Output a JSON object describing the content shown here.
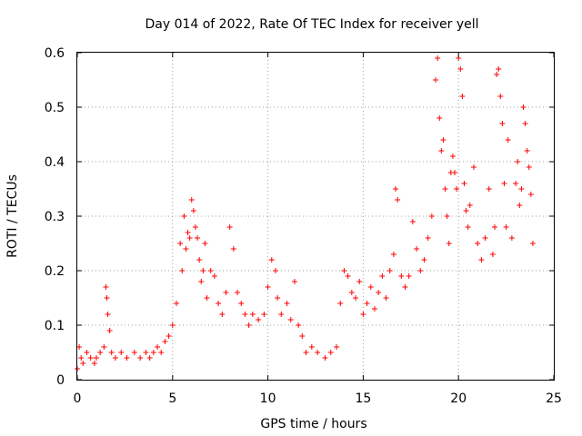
{
  "chart_data": {
    "type": "scatter",
    "title": "Day 014 of 2022, Rate Of TEC Index for receiver yell",
    "xlabel": "GPS time / hours",
    "ylabel": "ROTI / TECUs",
    "xlim": [
      0,
      25
    ],
    "ylim": [
      0,
      0.6
    ],
    "xticks": [
      "0",
      "5",
      "10",
      "15",
      "20",
      "25"
    ],
    "yticks": [
      "0",
      "0.1",
      "0.2",
      "0.3",
      "0.4",
      "0.5",
      "0.6"
    ],
    "grid": true,
    "marker": "+",
    "color": "#ff0000",
    "series": [
      {
        "x": [
          0.0,
          0.1,
          0.2,
          0.3,
          0.5,
          0.7,
          0.9,
          1.0,
          1.2,
          1.4,
          1.5,
          1.55,
          1.6,
          1.7,
          1.8,
          2.0,
          2.3,
          2.6,
          3.0,
          3.3,
          3.6,
          3.8,
          4.0,
          4.2,
          4.4,
          4.6,
          4.8,
          5.0,
          5.2,
          5.4,
          5.5,
          5.6,
          5.7,
          5.8,
          5.9,
          6.0,
          6.1,
          6.2,
          6.3,
          6.4,
          6.5,
          6.6,
          6.7,
          6.8,
          7.0,
          7.2,
          7.4,
          7.6,
          7.8,
          8.0,
          8.2,
          8.4,
          8.6,
          8.8,
          9.0,
          9.2,
          9.5,
          9.8,
          10.0,
          10.2,
          10.4,
          10.5,
          10.7,
          11.0,
          11.2,
          11.4,
          11.6,
          11.8,
          12.0,
          12.3,
          12.6,
          13.0,
          13.3,
          13.6,
          13.8,
          14.0,
          14.2,
          14.4,
          14.6,
          14.8,
          15.0,
          15.2,
          15.4,
          15.6,
          15.8,
          16.0,
          16.2,
          16.4,
          16.6,
          16.7,
          16.8,
          17.0,
          17.2,
          17.4,
          17.6,
          17.8,
          18.0,
          18.2,
          18.4,
          18.6,
          18.8,
          18.9,
          19.0,
          19.1,
          19.2,
          19.3,
          19.4,
          19.5,
          19.6,
          19.7,
          19.8,
          19.9,
          20.0,
          20.1,
          20.2,
          20.3,
          20.4,
          20.5,
          20.6,
          20.8,
          21.0,
          21.2,
          21.4,
          21.6,
          21.8,
          21.9,
          22.0,
          22.1,
          22.2,
          22.3,
          22.4,
          22.5,
          22.6,
          22.8,
          23.0,
          23.1,
          23.2,
          23.3,
          23.4,
          23.5,
          23.6,
          23.7,
          23.8,
          23.9
        ],
        "y": [
          0.02,
          0.06,
          0.04,
          0.03,
          0.05,
          0.04,
          0.03,
          0.04,
          0.05,
          0.06,
          0.17,
          0.15,
          0.12,
          0.09,
          0.05,
          0.04,
          0.05,
          0.04,
          0.05,
          0.04,
          0.05,
          0.04,
          0.05,
          0.06,
          0.05,
          0.07,
          0.08,
          0.1,
          0.14,
          0.25,
          0.2,
          0.3,
          0.24,
          0.27,
          0.26,
          0.33,
          0.31,
          0.28,
          0.26,
          0.22,
          0.18,
          0.2,
          0.25,
          0.15,
          0.2,
          0.19,
          0.14,
          0.12,
          0.16,
          0.28,
          0.24,
          0.16,
          0.14,
          0.12,
          0.1,
          0.12,
          0.11,
          0.12,
          0.17,
          0.22,
          0.2,
          0.15,
          0.12,
          0.14,
          0.11,
          0.18,
          0.1,
          0.08,
          0.05,
          0.06,
          0.05,
          0.04,
          0.05,
          0.06,
          0.14,
          0.2,
          0.19,
          0.16,
          0.15,
          0.18,
          0.12,
          0.14,
          0.17,
          0.13,
          0.16,
          0.19,
          0.15,
          0.2,
          0.23,
          0.35,
          0.33,
          0.19,
          0.17,
          0.19,
          0.29,
          0.24,
          0.2,
          0.22,
          0.26,
          0.3,
          0.55,
          0.59,
          0.48,
          0.42,
          0.44,
          0.35,
          0.3,
          0.25,
          0.38,
          0.41,
          0.38,
          0.35,
          0.59,
          0.57,
          0.52,
          0.36,
          0.31,
          0.28,
          0.32,
          0.39,
          0.25,
          0.22,
          0.26,
          0.35,
          0.23,
          0.28,
          0.56,
          0.57,
          0.52,
          0.47,
          0.36,
          0.28,
          0.44,
          0.26,
          0.36,
          0.4,
          0.32,
          0.35,
          0.5,
          0.47,
          0.42,
          0.39,
          0.34,
          0.25
        ]
      }
    ]
  }
}
